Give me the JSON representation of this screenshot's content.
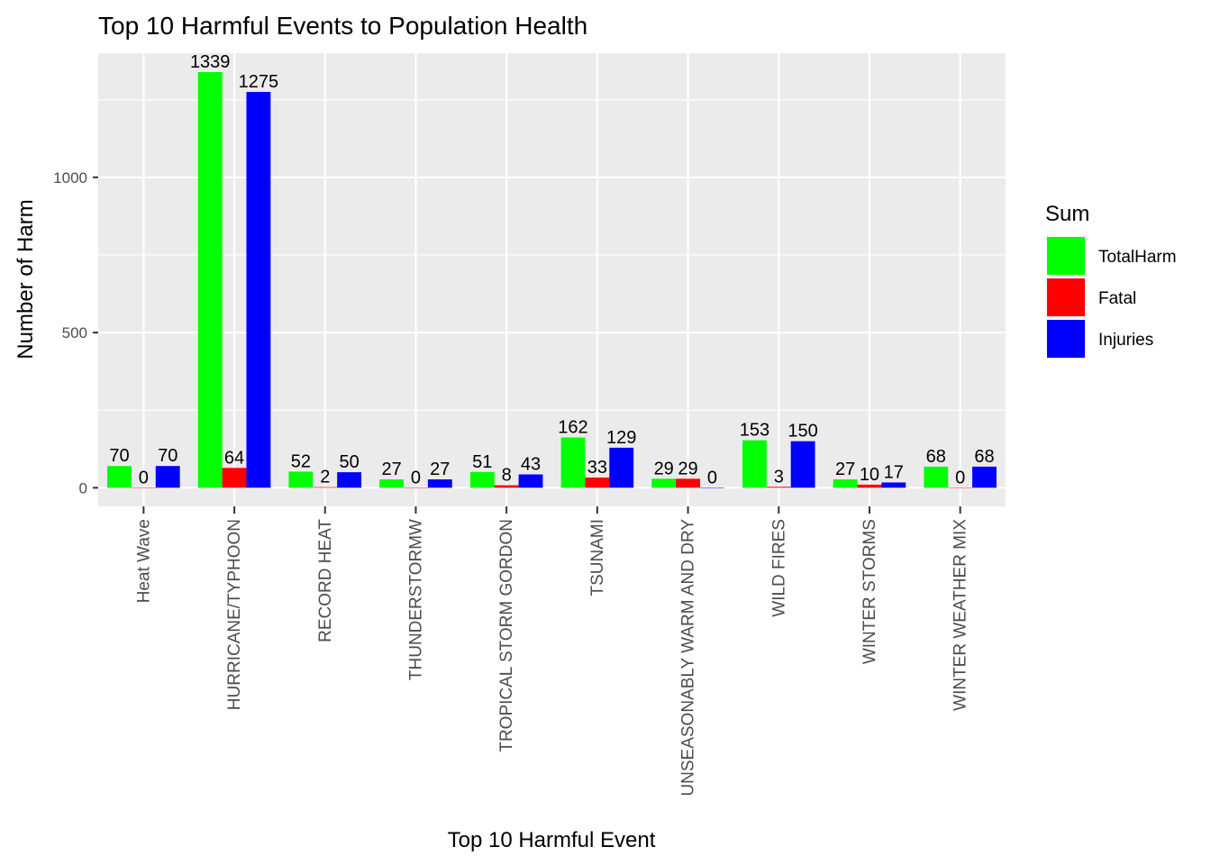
{
  "chart_data": {
    "type": "bar",
    "title": "Top 10 Harmful Events to Population Health",
    "xlabel": "Top 10 Harmful Event",
    "ylabel": "Number of Harm",
    "ylim": [
      -60,
      1400
    ],
    "yticks": [
      0,
      500,
      1000
    ],
    "grid": true,
    "legend": {
      "title": "Sum",
      "position": "right"
    },
    "categories": [
      "Heat Wave",
      "HURRICANE/TYPHOON",
      "RECORD HEAT",
      "THUNDERSTORMW",
      "TROPICAL STORM GORDON",
      "TSUNAMI",
      "UNSEASONABLY WARM AND DRY",
      "WILD FIRES",
      "WINTER STORMS",
      "WINTER WEATHER MIX"
    ],
    "series": [
      {
        "name": "TotalHarm",
        "color": "#00ff00",
        "values": [
          70,
          1339,
          52,
          27,
          51,
          162,
          29,
          153,
          27,
          68
        ]
      },
      {
        "name": "Fatal",
        "color": "#ff0000",
        "values": [
          0,
          64,
          2,
          0,
          8,
          33,
          29,
          3,
          10,
          0
        ]
      },
      {
        "name": "Injuries",
        "color": "#0000ff",
        "values": [
          70,
          1275,
          50,
          27,
          43,
          129,
          0,
          150,
          17,
          68
        ]
      }
    ]
  }
}
